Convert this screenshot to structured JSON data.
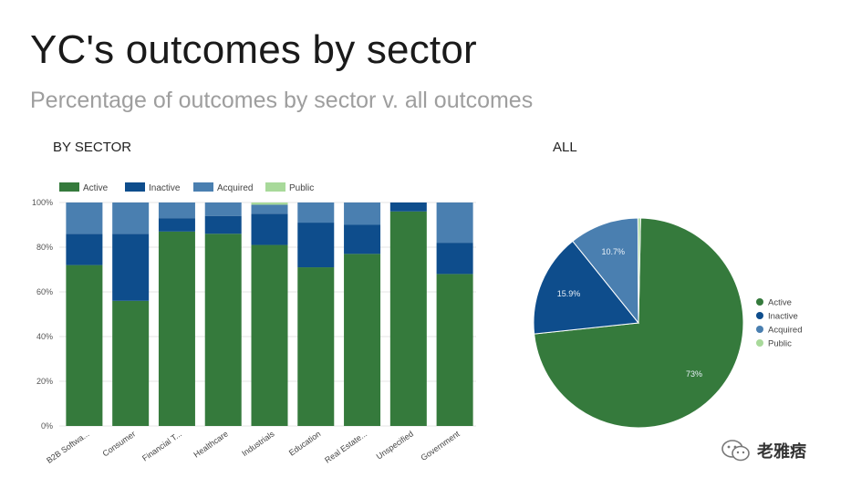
{
  "header": {
    "title": "YC's outcomes by sector",
    "subtitle": "Percentage of outcomes by sector v. all outcomes"
  },
  "sections": {
    "by_sector_label": "BY SECTOR",
    "all_label": "ALL"
  },
  "watermark": {
    "text": "老雅痞"
  },
  "colors": {
    "Active": "#357a3c",
    "Inactive": "#0e4d8c",
    "Acquired": "#4a7fb0",
    "Public": "#a8d99a"
  },
  "chart_data": [
    {
      "type": "bar",
      "stacked": true,
      "categories": [
        "B2B Softwa...",
        "Consumer",
        "Financial T...",
        "Healthcare",
        "Industrials",
        "Education",
        "Real Estate...",
        "Unspecified",
        "Government"
      ],
      "series": [
        {
          "name": "Active",
          "values": [
            72,
            56,
            87,
            86,
            81,
            71,
            77,
            96,
            68
          ]
        },
        {
          "name": "Inactive",
          "values": [
            14,
            30,
            6,
            8,
            14,
            20,
            13,
            4,
            14
          ]
        },
        {
          "name": "Acquired",
          "values": [
            14,
            14,
            7,
            6,
            4,
            9,
            10,
            0,
            18
          ]
        },
        {
          "name": "Public",
          "values": [
            0,
            0,
            0,
            0,
            1,
            0,
            0,
            0,
            0
          ]
        }
      ],
      "ylim": [
        0,
        100
      ],
      "yticks": [
        "0%",
        "20%",
        "40%",
        "60%",
        "80%",
        "100%"
      ],
      "legend": "top",
      "grid": true
    },
    {
      "type": "pie",
      "labels": [
        "Active",
        "Inactive",
        "Acquired",
        "Public"
      ],
      "values": [
        73,
        15.9,
        10.7,
        0.4
      ],
      "data_labels": [
        "73%",
        "15.9%",
        "10.7%",
        ""
      ],
      "legend": "right"
    }
  ]
}
